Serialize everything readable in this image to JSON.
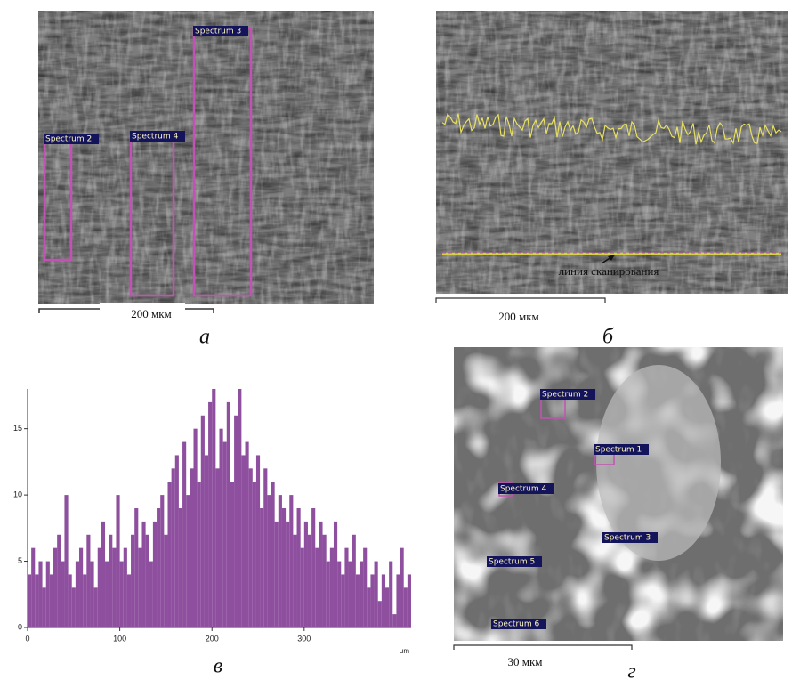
{
  "panels": [
    {
      "letter": "а",
      "scale": "200 мкм",
      "spectra": [
        "Spectrum 3",
        "Spectrum 2",
        "Spectrum 4"
      ]
    },
    {
      "letter": "б",
      "scale": "200 мкм",
      "annotation": "линия сканирования"
    },
    {
      "letter": "в"
    },
    {
      "letter": "г",
      "scale": "30 мкм",
      "spectra": [
        "Spectrum 2",
        "Spectrum 1",
        "Spectrum 4",
        "Spectrum 3",
        "Spectrum 5",
        "Spectrum 6"
      ]
    }
  ],
  "chart_data": {
    "type": "histogram",
    "x_label": "μm",
    "color": "#8e4f9e",
    "bins": [
      0,
      4,
      8,
      12,
      16,
      20,
      24,
      28,
      32,
      36,
      40,
      44,
      48,
      52,
      56,
      60,
      64,
      68,
      72,
      76,
      80,
      84,
      88,
      92,
      96,
      100,
      104,
      108,
      112,
      116,
      120,
      124,
      128,
      132,
      136,
      140,
      144,
      148,
      152,
      156,
      160,
      164,
      168,
      172,
      176,
      180,
      184,
      188,
      192,
      196,
      200,
      204,
      208,
      212,
      216,
      220,
      224,
      228,
      232,
      236,
      240,
      244,
      248,
      252,
      256,
      260,
      264,
      268,
      272,
      276,
      280,
      284,
      288,
      292,
      296,
      300,
      304,
      308,
      312,
      316,
      320,
      324,
      328,
      332,
      336,
      340,
      344,
      348,
      352,
      356,
      360,
      364,
      368,
      372,
      376,
      380,
      384,
      388,
      392,
      396,
      400,
      404,
      408,
      412,
      416
    ],
    "values": [
      4,
      6,
      4,
      5,
      3,
      5,
      4,
      6,
      7,
      5,
      10,
      4,
      3,
      5,
      6,
      4,
      7,
      5,
      3,
      6,
      8,
      5,
      7,
      6,
      10,
      5,
      6,
      4,
      7,
      9,
      6,
      8,
      7,
      5,
      8,
      9,
      10,
      7,
      11,
      12,
      13,
      9,
      14,
      10,
      12,
      15,
      11,
      16,
      13,
      17,
      18,
      12,
      15,
      14,
      17,
      11,
      16,
      18,
      13,
      14,
      12,
      11,
      13,
      9,
      12,
      10,
      11,
      8,
      10,
      9,
      8,
      10,
      7,
      9,
      6,
      8,
      7,
      9,
      6,
      8,
      7,
      5,
      6,
      8,
      5,
      4,
      6,
      5,
      7,
      4,
      5,
      6,
      3,
      4,
      5,
      2,
      4,
      3,
      5,
      1,
      4,
      6,
      3,
      4
    ],
    "xlim": [
      0,
      416
    ],
    "xticks": [
      0,
      100,
      200,
      300
    ],
    "ylim": [
      0,
      18
    ],
    "yticks": [
      0,
      5,
      10,
      15
    ]
  }
}
